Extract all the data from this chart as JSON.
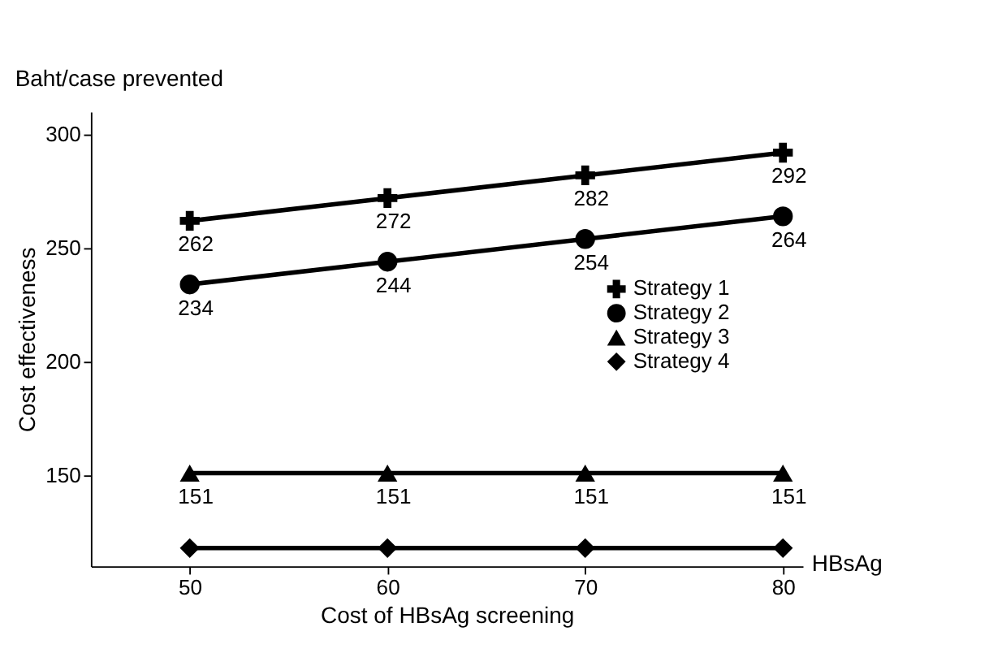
{
  "chart_data": {
    "type": "line",
    "xlabel": "Cost of HBsAg screening",
    "ylabel": "Cost effectiveness",
    "annotations": [
      "Baht/case prevented",
      "HBsAg"
    ],
    "x": [
      50,
      60,
      70,
      80
    ],
    "xlim": [
      45,
      81
    ],
    "xticks": [
      50,
      60,
      70,
      80
    ],
    "ylim": [
      110,
      310
    ],
    "yticks": [
      150,
      200,
      250,
      300
    ],
    "series": [
      {
        "name": "Strategy 1",
        "color": "#000000",
        "marker": "cross",
        "values": [
          262,
          272,
          282,
          292
        ]
      },
      {
        "name": "Strategy 2",
        "color": "#000000",
        "marker": "circle",
        "values": [
          234,
          244,
          254,
          264
        ]
      },
      {
        "name": "Strategy 3",
        "color": "#000000",
        "marker": "triangle",
        "values": [
          151,
          151,
          151,
          151
        ]
      },
      {
        "name": "Strategy 4",
        "color": "#000000",
        "marker": "diamond",
        "values": [
          118,
          118,
          118,
          118
        ],
        "data_labels": false
      }
    ],
    "data_labels": true,
    "legend": "right",
    "grid": false,
    "line_style": "solid"
  }
}
